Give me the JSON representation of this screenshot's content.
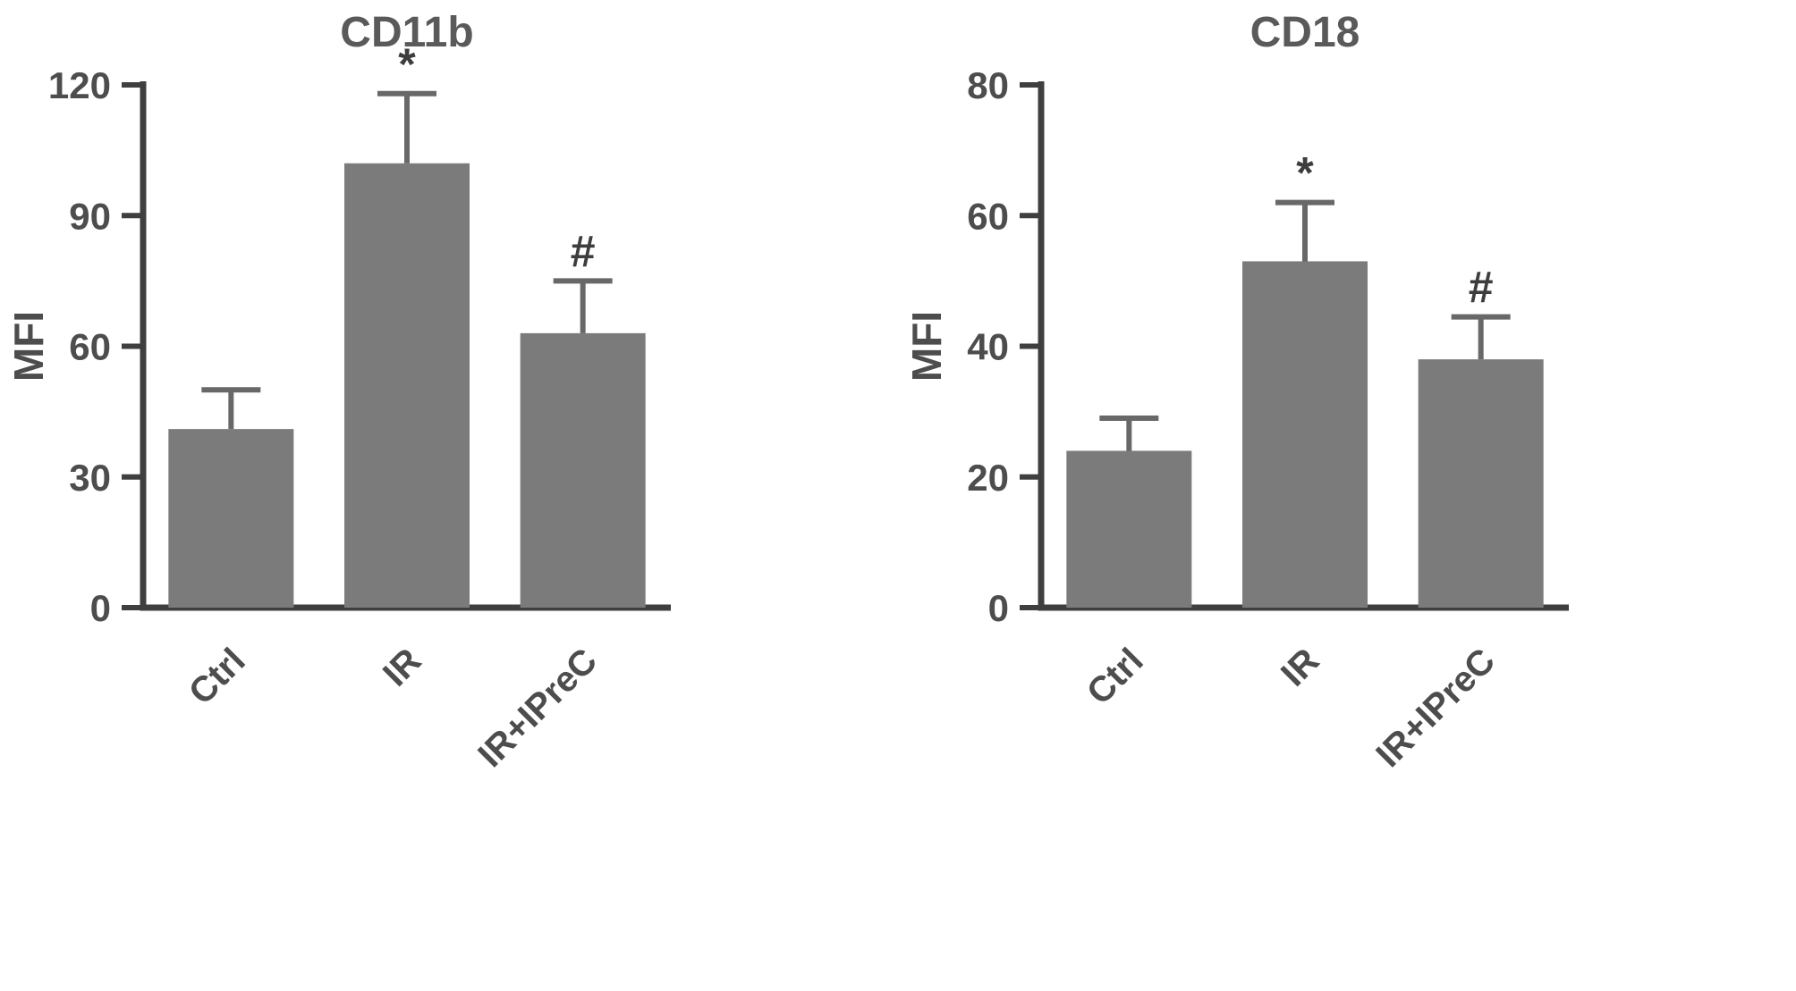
{
  "figure": {
    "background": "#ffffff",
    "panel_count": 2
  },
  "chart_data": [
    {
      "type": "bar",
      "title": "CD11b",
      "ylabel": "MFI",
      "xlabel": "",
      "categories": [
        "Ctrl",
        "IR",
        "IR+IPreC"
      ],
      "values": [
        41,
        102,
        63
      ],
      "errors": [
        9,
        16,
        12
      ],
      "annotations": [
        "",
        "*",
        "#"
      ],
      "ylim": [
        0,
        120
      ],
      "yticks": [
        0,
        30,
        60,
        90,
        120
      ],
      "grid": false,
      "legend": "none",
      "bar_color": "#7b7b7b",
      "error_color": "#686868",
      "axis_color": "#3f3f3f",
      "text_color": "#4d4d4d",
      "title_color": "#5a5a5a",
      "annotation_color": "#3d3d3d"
    },
    {
      "type": "bar",
      "title": "CD18",
      "ylabel": "MFI",
      "xlabel": "",
      "categories": [
        "Ctrl",
        "IR",
        "IR+IPreC"
      ],
      "values": [
        24,
        53,
        38
      ],
      "errors": [
        5,
        9,
        6.5
      ],
      "annotations": [
        "",
        "*",
        "#"
      ],
      "ylim": [
        0,
        80
      ],
      "yticks": [
        0,
        20,
        40,
        60,
        80
      ],
      "grid": false,
      "legend": "none",
      "bar_color": "#7b7b7b",
      "error_color": "#686868",
      "axis_color": "#3f3f3f",
      "text_color": "#4d4d4d",
      "title_color": "#5a5a5a",
      "annotation_color": "#3d3d3d"
    }
  ]
}
